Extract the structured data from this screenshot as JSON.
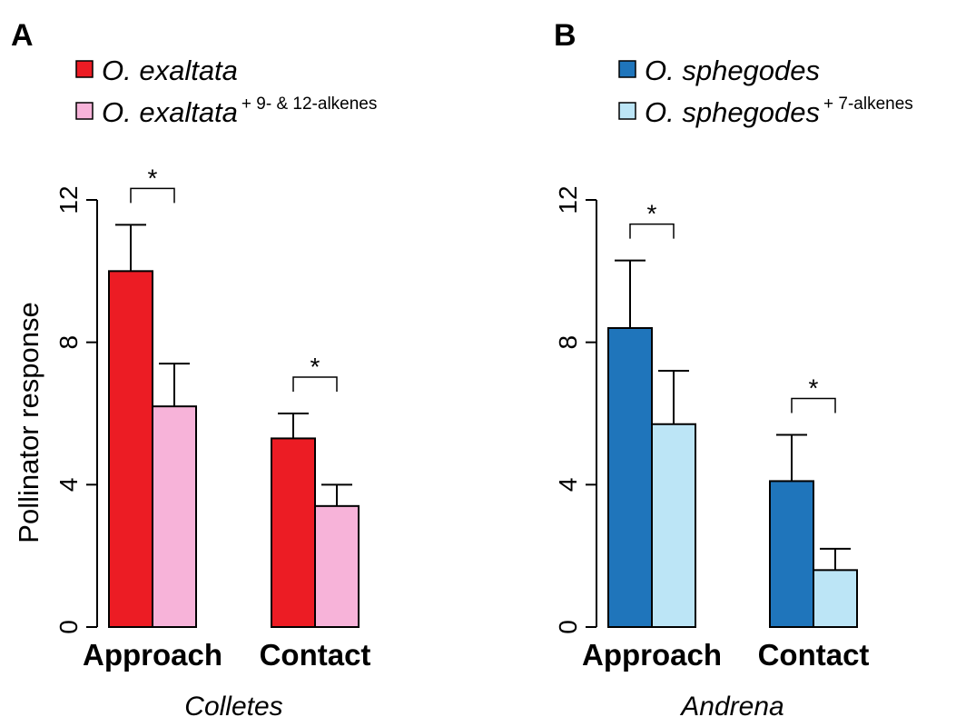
{
  "chart_data": [
    {
      "type": "bar",
      "panel_label": "A",
      "categories": [
        "Approach",
        "Contact"
      ],
      "xlabel": "Colletes",
      "ylabel": "Pollinator response",
      "ylim": [
        0,
        12
      ],
      "yticks": [
        "0",
        "4",
        "8",
        "12"
      ],
      "series": [
        {
          "name": "O. exaltata",
          "name_sup": "",
          "color": "#ec1c24",
          "values": [
            10.0,
            5.3
          ],
          "errors": [
            1.3,
            0.7
          ]
        },
        {
          "name": "O. exaltata",
          "name_sup": "+ 9- & 12-alkenes",
          "color": "#f7b3d9",
          "values": [
            6.2,
            3.4
          ],
          "errors": [
            1.2,
            0.6
          ]
        }
      ],
      "significance": [
        "*",
        "*"
      ],
      "legend": "top-left",
      "grid": false
    },
    {
      "type": "bar",
      "panel_label": "B",
      "categories": [
        "Approach",
        "Contact"
      ],
      "xlabel": "Andrena",
      "ylabel": "",
      "ylim": [
        0,
        12
      ],
      "yticks": [
        "0",
        "4",
        "8",
        "12"
      ],
      "series": [
        {
          "name": "O. sphegodes",
          "name_sup": "",
          "color": "#1f75bb",
          "values": [
            8.4,
            4.1
          ],
          "errors": [
            1.9,
            1.3
          ]
        },
        {
          "name": "O. sphegodes",
          "name_sup": "+ 7-alkenes",
          "color": "#bce5f6",
          "values": [
            5.7,
            1.6
          ],
          "errors": [
            1.5,
            0.6
          ]
        }
      ],
      "significance": [
        "*",
        "*"
      ],
      "legend": "top-left",
      "grid": false
    }
  ]
}
